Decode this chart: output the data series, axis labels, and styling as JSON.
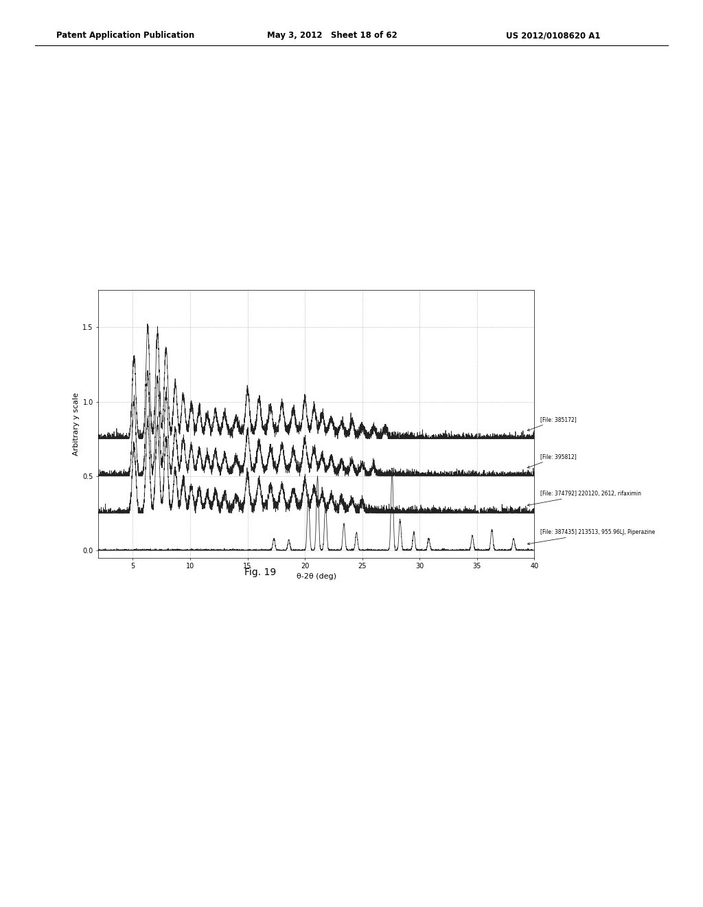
{
  "title": "Fig. 19",
  "xlabel": "θ-2θ (deg)",
  "ylabel": "Arbitrary y scale",
  "xlim": [
    2,
    40
  ],
  "ylim": [
    -0.05,
    1.75
  ],
  "yticks": [
    0,
    0.5,
    1.0,
    1.5
  ],
  "xticks": [
    5,
    10,
    15,
    20,
    25,
    30,
    35,
    40
  ],
  "background_color": "#ffffff",
  "line_color": "#222222",
  "grid_color": "#999999",
  "ann_texts": [
    "[File: 385172]",
    "[File: 395812]",
    "[File: 374792] 220120, 2612, rifaximin",
    "[File: 387435] 213513, 955.96LJ, Piperazine"
  ],
  "header_left": "Patent Application Publication",
  "header_center": "May 3, 2012   Sheet 18 of 62",
  "header_right": "US 2012/0108620 A1"
}
